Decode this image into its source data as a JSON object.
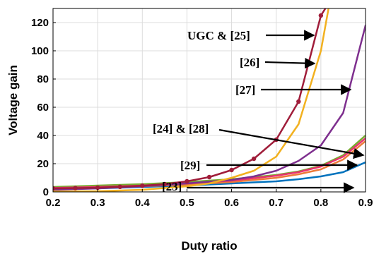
{
  "chart_data": {
    "type": "line",
    "title": "",
    "xlabel": "Duty ratio",
    "ylabel": "Voltage gain",
    "xlim": [
      0.2,
      0.9
    ],
    "ylim": [
      0,
      130
    ],
    "xticks": [
      "0.2",
      "0.3",
      "0.4",
      "0.5",
      "0.6",
      "0.7",
      "0.8",
      "0.9"
    ],
    "yticks": [
      "0",
      "20",
      "40",
      "60",
      "80",
      "100",
      "120"
    ],
    "grid": true,
    "series": [
      {
        "color": "#a01d3a",
        "markers": true,
        "x": [
          0.2,
          0.25,
          0.3,
          0.35,
          0.4,
          0.45,
          0.5,
          0.55,
          0.6,
          0.65,
          0.7,
          0.75,
          0.8,
          0.82
        ],
        "y": [
          2.5,
          2.7,
          3.0,
          3.6,
          4.4,
          5.5,
          7.5,
          10.5,
          15.5,
          23.5,
          37,
          64,
          125,
          135
        ]
      },
      {
        "color": "#f2b120",
        "markers": false,
        "x": [
          0.2,
          0.3,
          0.4,
          0.5,
          0.55,
          0.6,
          0.65,
          0.7,
          0.75,
          0.8,
          0.82
        ],
        "y": [
          0.3,
          0.5,
          1.5,
          4,
          6,
          10,
          15,
          25,
          48,
          100,
          135
        ]
      },
      {
        "color": "#7e2f8e",
        "markers": false,
        "x": [
          0.2,
          0.3,
          0.4,
          0.5,
          0.6,
          0.65,
          0.7,
          0.75,
          0.8,
          0.85,
          0.9
        ],
        "y": [
          1.5,
          2.5,
          4,
          6,
          8.5,
          11,
          15,
          22,
          33,
          56,
          118
        ]
      },
      {
        "color": "#e8326e",
        "markers": false,
        "x": [
          0.2,
          0.3,
          0.4,
          0.5,
          0.6,
          0.7,
          0.75,
          0.8,
          0.85,
          0.9
        ],
        "y": [
          2.8,
          3.5,
          4.5,
          6,
          8,
          11.5,
          14,
          18,
          25,
          38
        ]
      },
      {
        "color": "#77ac30",
        "markers": false,
        "x": [
          0.2,
          0.3,
          0.4,
          0.5,
          0.6,
          0.7,
          0.75,
          0.8,
          0.85,
          0.9
        ],
        "y": [
          3.5,
          4.5,
          5.5,
          7,
          9,
          12,
          14.5,
          18.5,
          26,
          40
        ]
      },
      {
        "color": "#ec7a3a",
        "markers": false,
        "x": [
          0.2,
          0.3,
          0.4,
          0.5,
          0.6,
          0.7,
          0.75,
          0.8,
          0.85,
          0.9
        ],
        "y": [
          2.2,
          3,
          4,
          5.2,
          7,
          10,
          12.5,
          16,
          23,
          36
        ]
      },
      {
        "color": "#0072bd",
        "markers": false,
        "x": [
          0.2,
          0.3,
          0.4,
          0.5,
          0.6,
          0.7,
          0.75,
          0.8,
          0.85,
          0.9
        ],
        "y": [
          2,
          2.5,
          3.5,
          4.5,
          6,
          7.5,
          9,
          11,
          14,
          21
        ]
      }
    ],
    "annotations": [
      {
        "text": "UGC & [25]",
        "arrow_to": [
          0.8,
          112
        ]
      },
      {
        "text": "[26]",
        "arrow_to": [
          0.8,
          86
        ]
      },
      {
        "text": "[27]",
        "arrow_to": [
          0.88,
          68
        ]
      },
      {
        "text": "[24] & [28]",
        "arrow_to": [
          0.9,
          38
        ]
      },
      {
        "text": "[29]",
        "arrow_to": [
          0.89,
          32
        ]
      },
      {
        "text": "[23]",
        "arrow_to": [
          0.87,
          17
        ]
      }
    ]
  }
}
